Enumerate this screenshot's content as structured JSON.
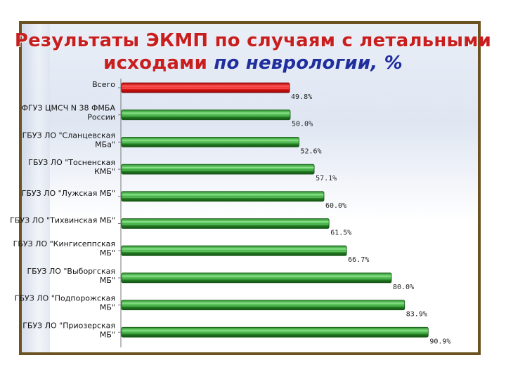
{
  "title": {
    "line1": "Результаты ЭКМП по случаям с летальными",
    "line2a": "исходами",
    "line2b": "по неврологии, %"
  },
  "colors": {
    "frame": "#6b5220",
    "highlight_bar": "#e01010",
    "bar_dark": "#1f7a1f",
    "bar_light": "#5cc85c",
    "title_red": "#c81e1e",
    "title_blue": "#1f2f9e"
  },
  "chart_data": {
    "type": "bar",
    "orientation": "horizontal",
    "categories": [
      "Всего",
      "ФГУЗ ЦМСЧ N 38 ФМБА России",
      "ГБУЗ ЛО \"Сланцевская МБа\"",
      "ГБУЗ ЛО \"Тосненская КМБ\"",
      "ГБУЗ ЛО \"Лужская МБ\"",
      "ГБУЗ ЛО \"Тихвинская МБ\"",
      "ГБУЗ ЛО \"Кингисеппская МБ\"",
      "ГБУЗ ЛО \"Выборгская МБ\"",
      "ГБУЗ ЛО \"Подпорожская МБ\"",
      "ГБУЗ ЛО \"Приозерская МБ\""
    ],
    "category_lines": [
      [
        "Всего"
      ],
      [
        "ФГУЗ ЦМСЧ N 38 ФМБА",
        "России"
      ],
      [
        "ГБУЗ ЛО \"Сланцевская",
        "МБа\""
      ],
      [
        "ГБУЗ ЛО \"Тосненская",
        "КМБ\""
      ],
      [
        "ГБУЗ ЛО \"Лужская МБ\""
      ],
      [
        "ГБУЗ ЛО \"Тихвинская МБ\""
      ],
      [
        "ГБУЗ ЛО \"Кингисеппская",
        "МБ\""
      ],
      [
        "ГБУЗ ЛО \"Выборгская",
        "МБ\""
      ],
      [
        "ГБУЗ ЛО \"Подпорожская",
        "МБ\""
      ],
      [
        "ГБУЗ ЛО \"Приозерская",
        "МБ\""
      ]
    ],
    "values": [
      49.8,
      50.0,
      52.6,
      57.1,
      60.0,
      61.5,
      66.7,
      80.0,
      83.9,
      90.9
    ],
    "value_labels": [
      "49.8%",
      "50.0%",
      "52.6%",
      "57.1%",
      "60.0%",
      "61.5%",
      "66.7%",
      "80.0%",
      "83.9%",
      "90.9%"
    ],
    "highlight_index": 0,
    "xlim": [
      0,
      100
    ],
    "title": "Результаты ЭКМП по случаям с летальными исходами по неврологии, %",
    "xlabel": "",
    "ylabel": "",
    "grid": false
  }
}
